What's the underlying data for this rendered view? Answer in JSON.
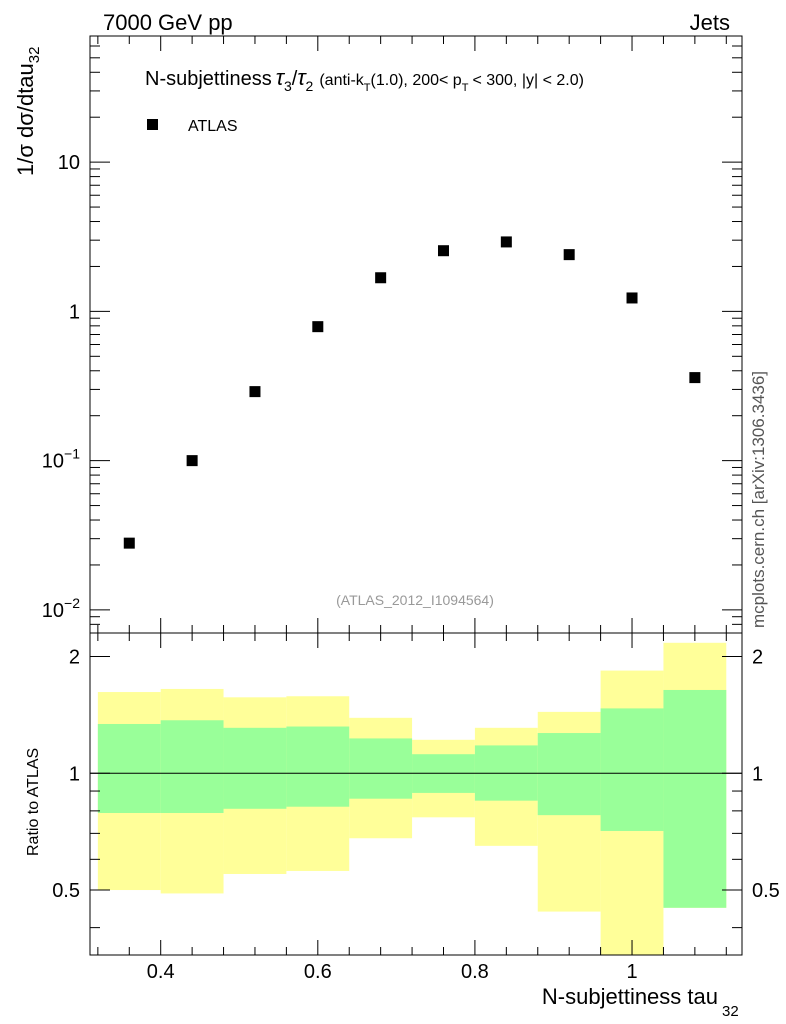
{
  "header": {
    "left": "7000 GeV pp",
    "right": "Jets"
  },
  "side_label": "mcplots.cern.ch [arXiv:1306.3436]",
  "watermark": "(ATLAS_2012_I1094564)",
  "colors": {
    "outer_band": "#ffff99",
    "inner_band": "#99ff99",
    "marker": "#000000"
  },
  "chart_data": [
    {
      "type": "scatter",
      "panel": "main",
      "title_prefix": "N-subjettiness",
      "title_tau_num": "τ",
      "title_tau_num_sub": "3",
      "title_slash": "/",
      "title_tau_den": "τ",
      "title_tau_den_sub": "2",
      "title_cuts_a": "(anti-k",
      "title_cuts_a_sub": "T",
      "title_cuts_b": "(1.0), 200< p",
      "title_cuts_b_sub": "T",
      "title_cuts_c": "< 300, |y| < 2.0)",
      "ylabel": "1/σ dσ/dtau",
      "ylabel_sub": "32",
      "yscale": "log",
      "ylim": [
        0.007,
        70
      ],
      "xlim": [
        0.31,
        1.14
      ],
      "legend": "ATLAS",
      "ytick_labels": [
        {
          "value": 10,
          "base": "10",
          "exp": ""
        },
        {
          "value": 1,
          "base": "1",
          "exp": ""
        },
        {
          "value": 0.1,
          "base": "10",
          "exp": "−1"
        },
        {
          "value": 0.01,
          "base": "10",
          "exp": "−2"
        }
      ],
      "x": [
        0.36,
        0.44,
        0.52,
        0.6,
        0.68,
        0.76,
        0.84,
        0.92,
        1.0,
        1.08
      ],
      "y": [
        0.028,
        0.1,
        0.29,
        0.79,
        1.68,
        2.55,
        2.92,
        2.4,
        1.23,
        0.36
      ]
    },
    {
      "type": "area",
      "panel": "ratio",
      "ylabel": "Ratio to ATLAS",
      "xlabel": "N-subjettiness tau",
      "xlabel_sub": "32",
      "xlim": [
        0.31,
        1.14
      ],
      "ylim": [
        0.34,
        2.3
      ],
      "xtick_labels": [
        "0.4",
        "0.6",
        "0.8",
        "1"
      ],
      "xtick_values": [
        0.4,
        0.6,
        0.8,
        1.0
      ],
      "ytick_labels": [
        "2",
        "1",
        "0.5"
      ],
      "ytick_values": [
        2,
        1,
        0.5
      ],
      "reference_line": 1,
      "bin_edges": [
        0.32,
        0.4,
        0.48,
        0.56,
        0.64,
        0.72,
        0.8,
        0.88,
        0.96,
        1.04,
        1.12
      ],
      "series": [
        {
          "name": "outer band (yellow)",
          "upper": [
            1.62,
            1.65,
            1.57,
            1.58,
            1.39,
            1.22,
            1.31,
            1.44,
            1.84,
            2.17
          ],
          "lower": [
            0.5,
            0.49,
            0.55,
            0.56,
            0.68,
            0.77,
            0.65,
            0.44,
            0.31,
            0.45
          ]
        },
        {
          "name": "inner band (green)",
          "upper": [
            1.34,
            1.37,
            1.31,
            1.32,
            1.23,
            1.12,
            1.18,
            1.27,
            1.47,
            1.64
          ],
          "lower": [
            0.79,
            0.79,
            0.81,
            0.82,
            0.86,
            0.89,
            0.85,
            0.78,
            0.71,
            0.45
          ]
        }
      ]
    }
  ]
}
